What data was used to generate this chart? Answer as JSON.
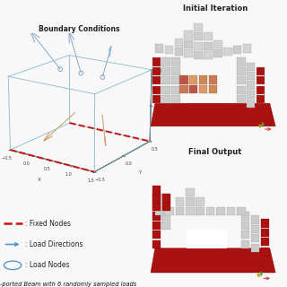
{
  "boundary_title": "Boundary Conditions",
  "initial_title": "Initial Iteration",
  "final_title": "Final Output",
  "legend_fixed_label": ": Fixed Nodes",
  "legend_load_dir_label": ": Load Directions",
  "legend_load_node_label": ": Load Nodes",
  "caption": "-ported Beam with 6 randomly sampled loads",
  "bg_color": "#f8f8f8",
  "box_color": "#88bbcc",
  "fixed_color": "#cc1111",
  "load_arrow_color": "#88aacc",
  "load_node_color": "#88aacc",
  "orange_arrow_color": "#cc9966",
  "red_block_color": "#aa1111",
  "red_block_edge": "#880000",
  "gray_block_color": "#cccccc",
  "gray_block_edge": "#999999",
  "axis_tick_color": "#444444",
  "title_color": "#222222",
  "legend_line_color": "#cc1111",
  "legend_arrow_color": "#5599cc",
  "legend_circle_color": "#5599cc"
}
